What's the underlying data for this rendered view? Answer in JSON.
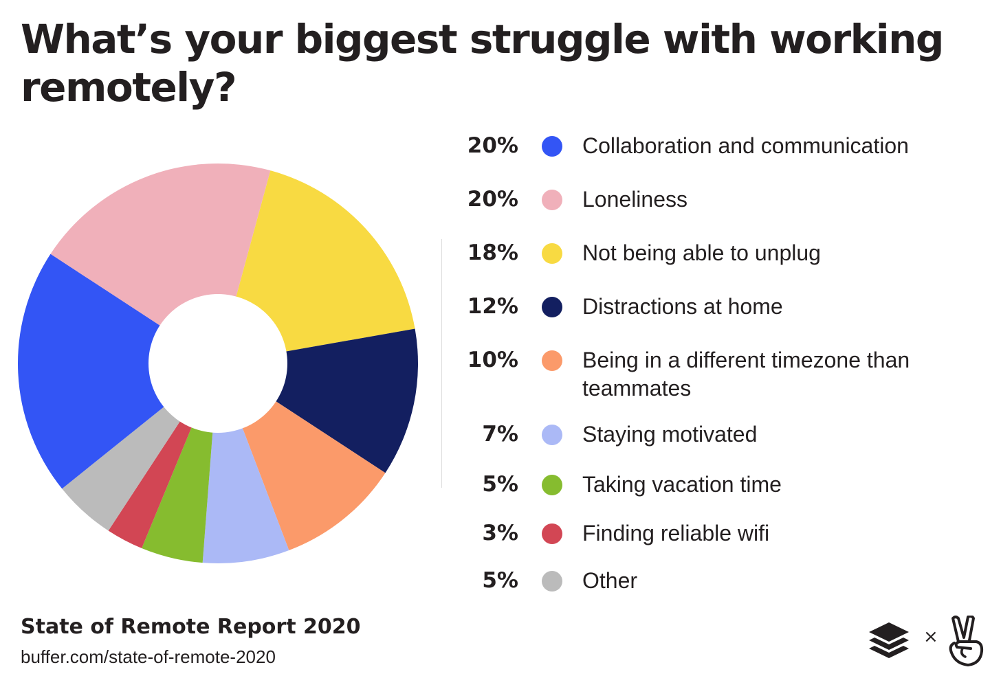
{
  "chart_data": {
    "type": "pie",
    "title": "What’s your biggest struggle with working remotely?",
    "donut": true,
    "slices": [
      {
        "label": "Collaboration and communication",
        "value": 20,
        "value_label": "20%",
        "color": "#3355f5"
      },
      {
        "label": "Loneliness",
        "value": 20,
        "value_label": "20%",
        "color": "#f0b0ba"
      },
      {
        "label": "Not being able to unplug",
        "value": 18,
        "value_label": "18%",
        "color": "#f8da42"
      },
      {
        "label": "Distractions at home",
        "value": 12,
        "value_label": "12%",
        "color": "#131f60"
      },
      {
        "label": "Being in a different timezone than teammates",
        "value": 10,
        "value_label": "10%",
        "color": "#fb9a6a"
      },
      {
        "label": "Staying motivated",
        "value": 7,
        "value_label": "7%",
        "color": "#abb9f6"
      },
      {
        "label": "Taking vacation time",
        "value": 5,
        "value_label": "5%",
        "color": "#86bc2f"
      },
      {
        "label": "Finding reliable wifi",
        "value": 3,
        "value_label": "3%",
        "color": "#d24654"
      },
      {
        "label": "Other",
        "value": 5,
        "value_label": "5%",
        "color": "#bbbbbb"
      }
    ],
    "legend_position": "right"
  },
  "footer": {
    "title": "State of Remote Report 2020",
    "url": "buffer.com/state-of-remote-2020",
    "separator": "×"
  },
  "icons": [
    "buffer-logo-icon",
    "angellist-peace-icon"
  ]
}
